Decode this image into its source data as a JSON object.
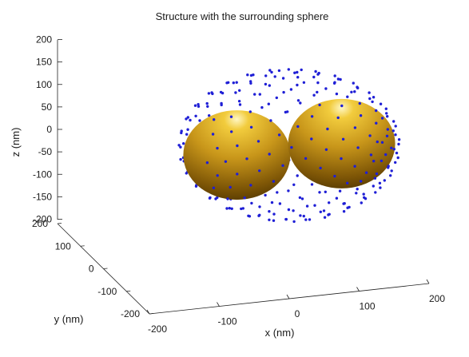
{
  "chart_data": {
    "type": "scatter",
    "title": "Structure with the surrounding sphere",
    "xlabel": "x (nm)",
    "ylabel": "y (nm)",
    "zlabel": "z (nm)",
    "xlim": [
      -200,
      200
    ],
    "ylim": [
      -200,
      200
    ],
    "zlim": [
      -200,
      200
    ],
    "x_ticks": [
      "-200",
      "-100",
      "0",
      "100",
      "200"
    ],
    "y_ticks": [
      "-200",
      "-100",
      "0",
      "100",
      "200"
    ],
    "z_ticks": [
      "200",
      "150",
      "100",
      "50",
      "0",
      "-50",
      "-100",
      "-150",
      "-200"
    ],
    "grid": false,
    "point_color": "#1f1fd6",
    "surrounding_sphere": {
      "center": [
        0,
        0,
        0
      ],
      "radius": 150,
      "n_points": 300
    },
    "structures": [
      {
        "shape": "spheroid",
        "center": [
          -75,
          0,
          0
        ],
        "semi_axes": [
          65,
          65,
          50
        ],
        "color": "#c8961a"
      },
      {
        "shape": "spheroid",
        "center": [
          75,
          0,
          0
        ],
        "semi_axes": [
          65,
          65,
          50
        ],
        "color": "#c8961a"
      }
    ]
  }
}
